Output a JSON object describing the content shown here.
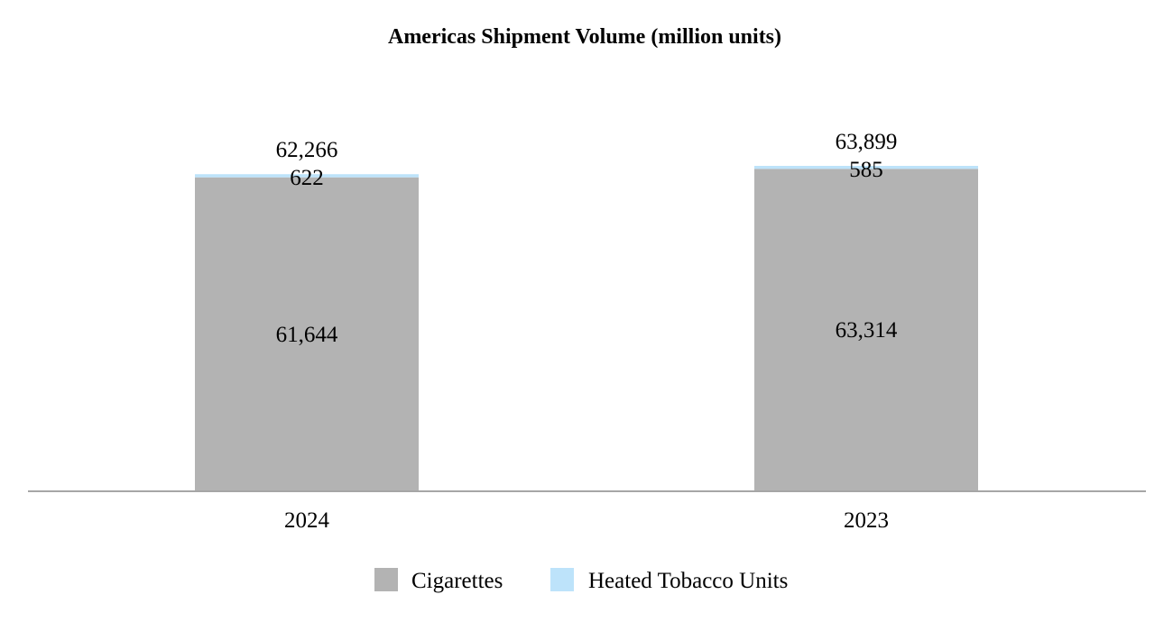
{
  "chart_data": {
    "type": "bar",
    "stacked": true,
    "title": "Americas Shipment Volume (million units)",
    "xlabel": "",
    "ylabel": "",
    "categories": [
      "2024",
      "2023"
    ],
    "series": [
      {
        "name": "Cigarettes",
        "values": [
          61644,
          63314
        ],
        "value_labels": [
          "61,644",
          "63,314"
        ],
        "color": "#b3b3b3"
      },
      {
        "name": "Heated Tobacco Units",
        "values": [
          622,
          585
        ],
        "value_labels": [
          "622",
          "585"
        ],
        "color": "#bde3fa"
      }
    ],
    "totals": [
      62266,
      63899
    ],
    "total_labels": [
      "62,266",
      "63,899"
    ],
    "ylim": [
      0,
      63899
    ],
    "grid": false,
    "legend_position": "bottom",
    "axis_color": "#a6a6a6"
  }
}
